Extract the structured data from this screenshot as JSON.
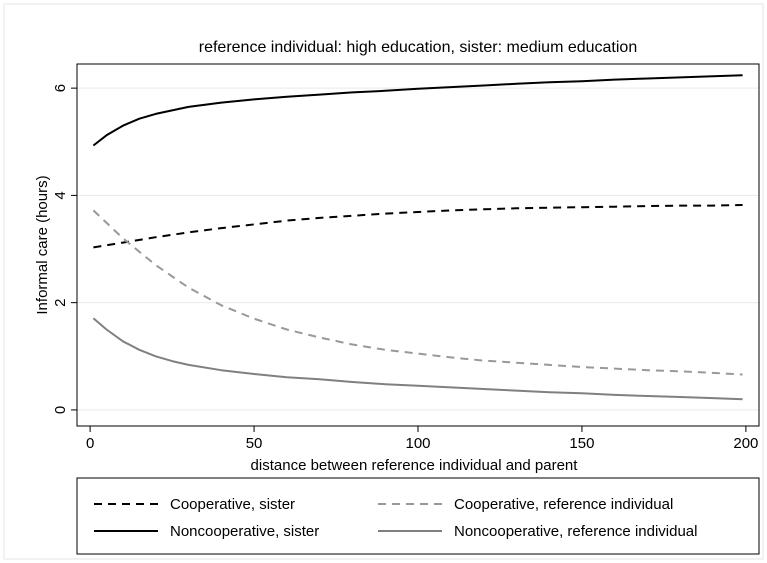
{
  "chart_data": {
    "type": "line",
    "title": "reference individual: high education, sister: medium education",
    "xlabel": "distance between reference individual and parent",
    "ylabel": "Informal care (hours)",
    "xlim": [
      -4,
      204
    ],
    "ylim": [
      -0.3,
      6.45
    ],
    "x_ticks": [
      0,
      50,
      100,
      150,
      200
    ],
    "y_ticks": [
      0,
      2,
      4,
      6
    ],
    "grid": true,
    "legend_position": "bottom",
    "series": [
      {
        "name": "Cooperative, sister",
        "color": "#000000",
        "style": "dashed",
        "x": [
          1,
          10,
          20,
          30,
          40,
          50,
          60,
          70,
          80,
          90,
          100,
          110,
          120,
          130,
          140,
          150,
          160,
          170,
          180,
          190,
          199
        ],
        "values": [
          3.03,
          3.12,
          3.22,
          3.31,
          3.39,
          3.46,
          3.53,
          3.58,
          3.62,
          3.66,
          3.69,
          3.72,
          3.74,
          3.76,
          3.77,
          3.78,
          3.79,
          3.8,
          3.81,
          3.81,
          3.82
        ]
      },
      {
        "name": "Cooperative, reference individual",
        "color": "#999999",
        "style": "dashed",
        "x": [
          1,
          10,
          20,
          30,
          40,
          50,
          60,
          70,
          80,
          90,
          100,
          110,
          120,
          130,
          140,
          150,
          160,
          170,
          180,
          190,
          199
        ],
        "values": [
          3.72,
          3.2,
          2.7,
          2.28,
          1.95,
          1.7,
          1.5,
          1.35,
          1.22,
          1.12,
          1.05,
          0.98,
          0.92,
          0.88,
          0.84,
          0.8,
          0.77,
          0.74,
          0.72,
          0.69,
          0.66
        ]
      },
      {
        "name": "Noncooperative, sister",
        "color": "#000000",
        "style": "solid",
        "x": [
          1,
          5,
          10,
          15,
          20,
          30,
          40,
          50,
          60,
          70,
          80,
          90,
          100,
          110,
          120,
          130,
          140,
          150,
          160,
          170,
          180,
          190,
          199
        ],
        "values": [
          4.93,
          5.12,
          5.3,
          5.43,
          5.52,
          5.65,
          5.73,
          5.79,
          5.84,
          5.88,
          5.92,
          5.95,
          5.99,
          6.02,
          6.05,
          6.08,
          6.11,
          6.13,
          6.16,
          6.18,
          6.2,
          6.22,
          6.24
        ]
      },
      {
        "name": "Noncooperative, reference individual",
        "color": "#808080",
        "style": "solid",
        "x": [
          1,
          5,
          10,
          15,
          20,
          25,
          30,
          40,
          50,
          60,
          70,
          80,
          90,
          100,
          110,
          120,
          130,
          140,
          150,
          160,
          170,
          180,
          190,
          199
        ],
        "values": [
          1.71,
          1.5,
          1.28,
          1.12,
          1.0,
          0.91,
          0.84,
          0.74,
          0.67,
          0.61,
          0.57,
          0.52,
          0.48,
          0.45,
          0.42,
          0.39,
          0.36,
          0.33,
          0.31,
          0.28,
          0.26,
          0.24,
          0.22,
          0.2
        ]
      }
    ]
  }
}
